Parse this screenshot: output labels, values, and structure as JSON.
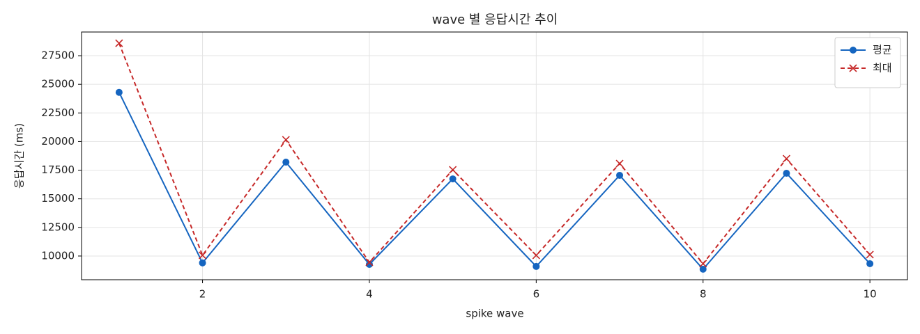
{
  "chart_data": {
    "type": "line",
    "title": "wave 별 응답시간 추이",
    "xlabel": "spike wave",
    "ylabel": "응답시간 (ms)",
    "x": [
      1,
      2,
      3,
      4,
      5,
      6,
      7,
      8,
      9,
      10
    ],
    "series": [
      {
        "name": "평균",
        "color": "#1565c0",
        "marker": "circle",
        "dashed": false,
        "values": [
          24300,
          9400,
          18200,
          9270,
          16740,
          9090,
          17050,
          8850,
          17230,
          9330
        ]
      },
      {
        "name": "최대",
        "color": "#c62828",
        "marker": "x",
        "dashed": true,
        "values": [
          28590,
          10060,
          20150,
          9450,
          17530,
          10060,
          18080,
          9330,
          18500,
          10120
        ]
      }
    ],
    "xlim": [
      0.55,
      10.45
    ],
    "xticks": [
      2,
      4,
      6,
      8,
      10
    ],
    "ylim": [
      7930,
      29570
    ],
    "yticks": [
      10000,
      12500,
      15000,
      17500,
      20000,
      22500,
      25000,
      27500
    ],
    "grid": true,
    "legend": "upper right"
  }
}
